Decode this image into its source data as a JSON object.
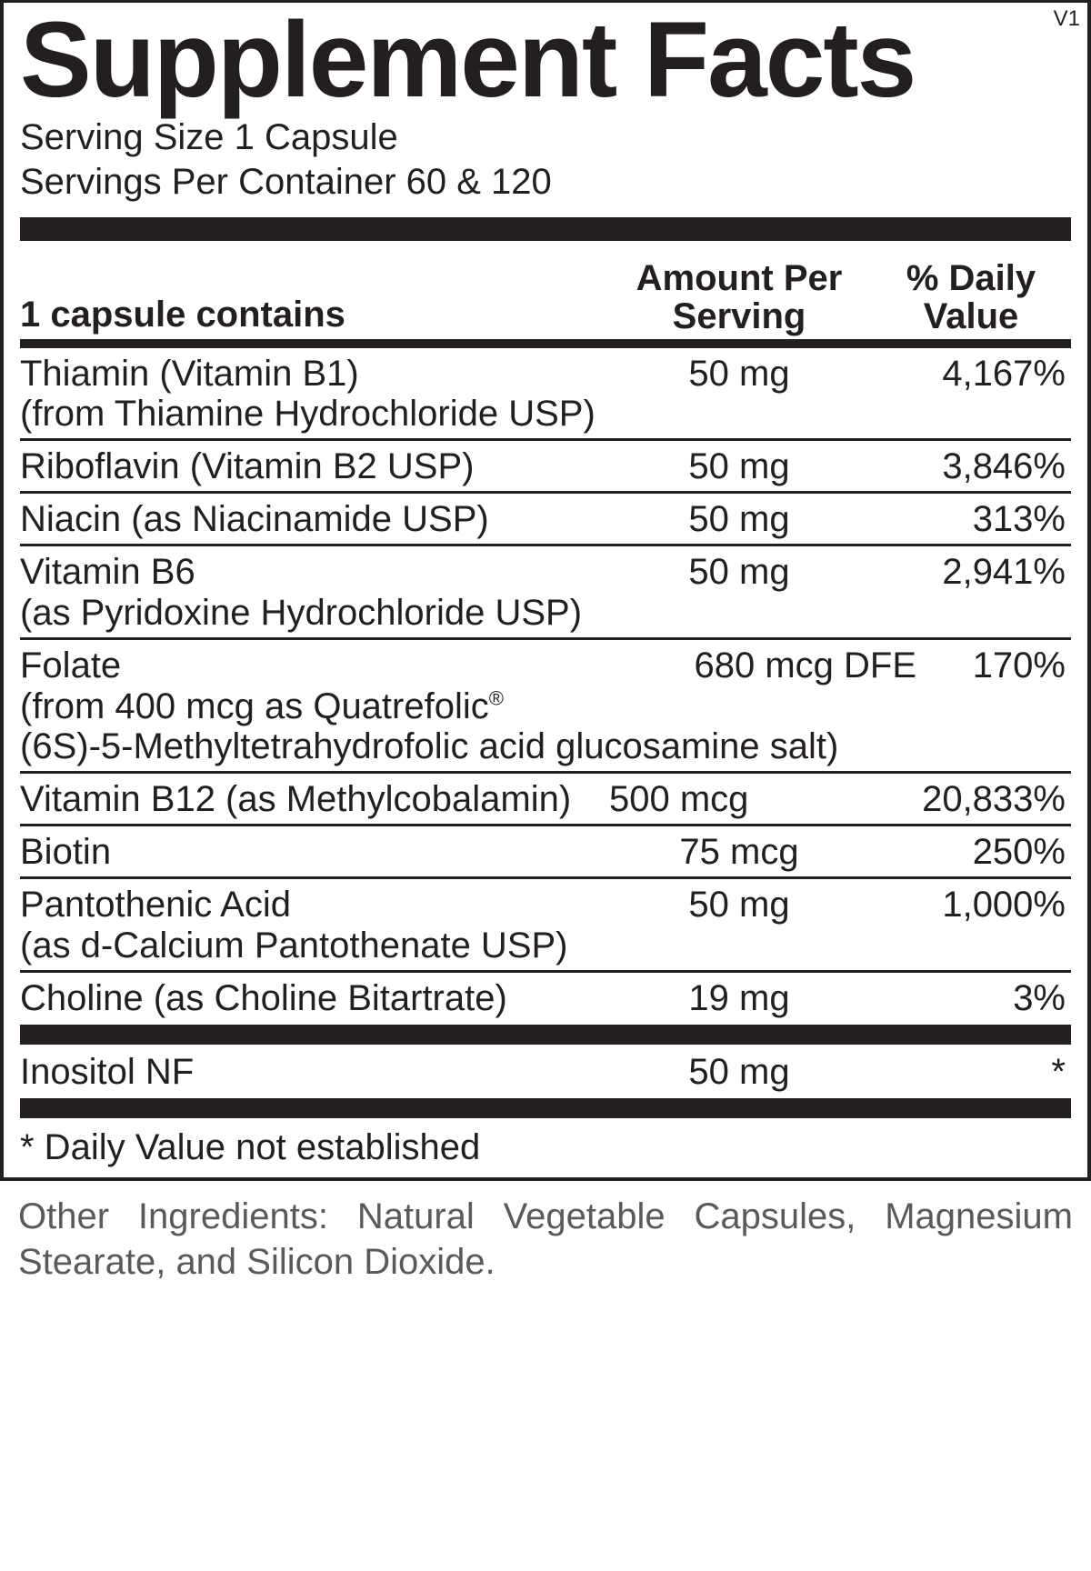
{
  "version": "V1",
  "title": "Supplement Facts",
  "serving_size": "Serving Size 1 Capsule",
  "servings_per_container": "Servings Per Container 60 & 120",
  "headers": {
    "left": "1 capsule contains",
    "mid_line1": "Amount Per",
    "mid_line2": "Serving",
    "right_line1": "% Daily",
    "right_line2": "Value"
  },
  "rows_main": [
    {
      "name": "Thiamin (Vitamin B1)",
      "sub": "(from Thiamine Hydrochloride USP)",
      "amount": "50 mg",
      "dv": "4,167%"
    },
    {
      "name": "Riboflavin (Vitamin B2 USP)",
      "sub": "",
      "amount": "50 mg",
      "dv": "3,846%"
    },
    {
      "name": "Niacin (as Niacinamide USP)",
      "sub": "",
      "amount": "50 mg",
      "dv": "313%"
    },
    {
      "name": "Vitamin B6",
      "sub": "(as Pyridoxine Hydrochloride USP)",
      "amount": "50 mg",
      "dv": "2,941%"
    }
  ],
  "folate": {
    "name": "Folate",
    "sub1_a": "(from 400 mcg as Quatrefolic",
    "sub1_b": "®",
    "sub2": "(6S)-5-Methyltetrahydrofolic acid glucosamine salt)",
    "amount": "680 mcg DFE",
    "dv": "170%"
  },
  "rows_tail": [
    {
      "name": "Vitamin B12 (as Methylcobalamin)",
      "sub": "",
      "amount": "500 mcg",
      "amt_left": true,
      "dv": "20,833%"
    },
    {
      "name": "Biotin",
      "sub": "",
      "amount": "75 mcg",
      "dv": "250%"
    },
    {
      "name": "Pantothenic Acid",
      "sub": "(as d-Calcium Pantothenate USP)",
      "amount": "50 mg",
      "dv": "1,000%"
    },
    {
      "name": "Choline (as Choline Bitartrate)",
      "sub": "",
      "amount": "19 mg",
      "dv": "3%"
    }
  ],
  "below_bar": [
    {
      "name": "Inositol NF",
      "sub": "",
      "amount": "50 mg",
      "dv": "*"
    }
  ],
  "footnote": "* Daily Value not established",
  "other_ingredients": "Other Ingredients: Natural Vegetable Capsules, Magnesium Stearate, and Silicon Dioxide.",
  "colors": {
    "ink": "#231f20",
    "muted": "#5c595a",
    "bg": "#ffffff"
  }
}
